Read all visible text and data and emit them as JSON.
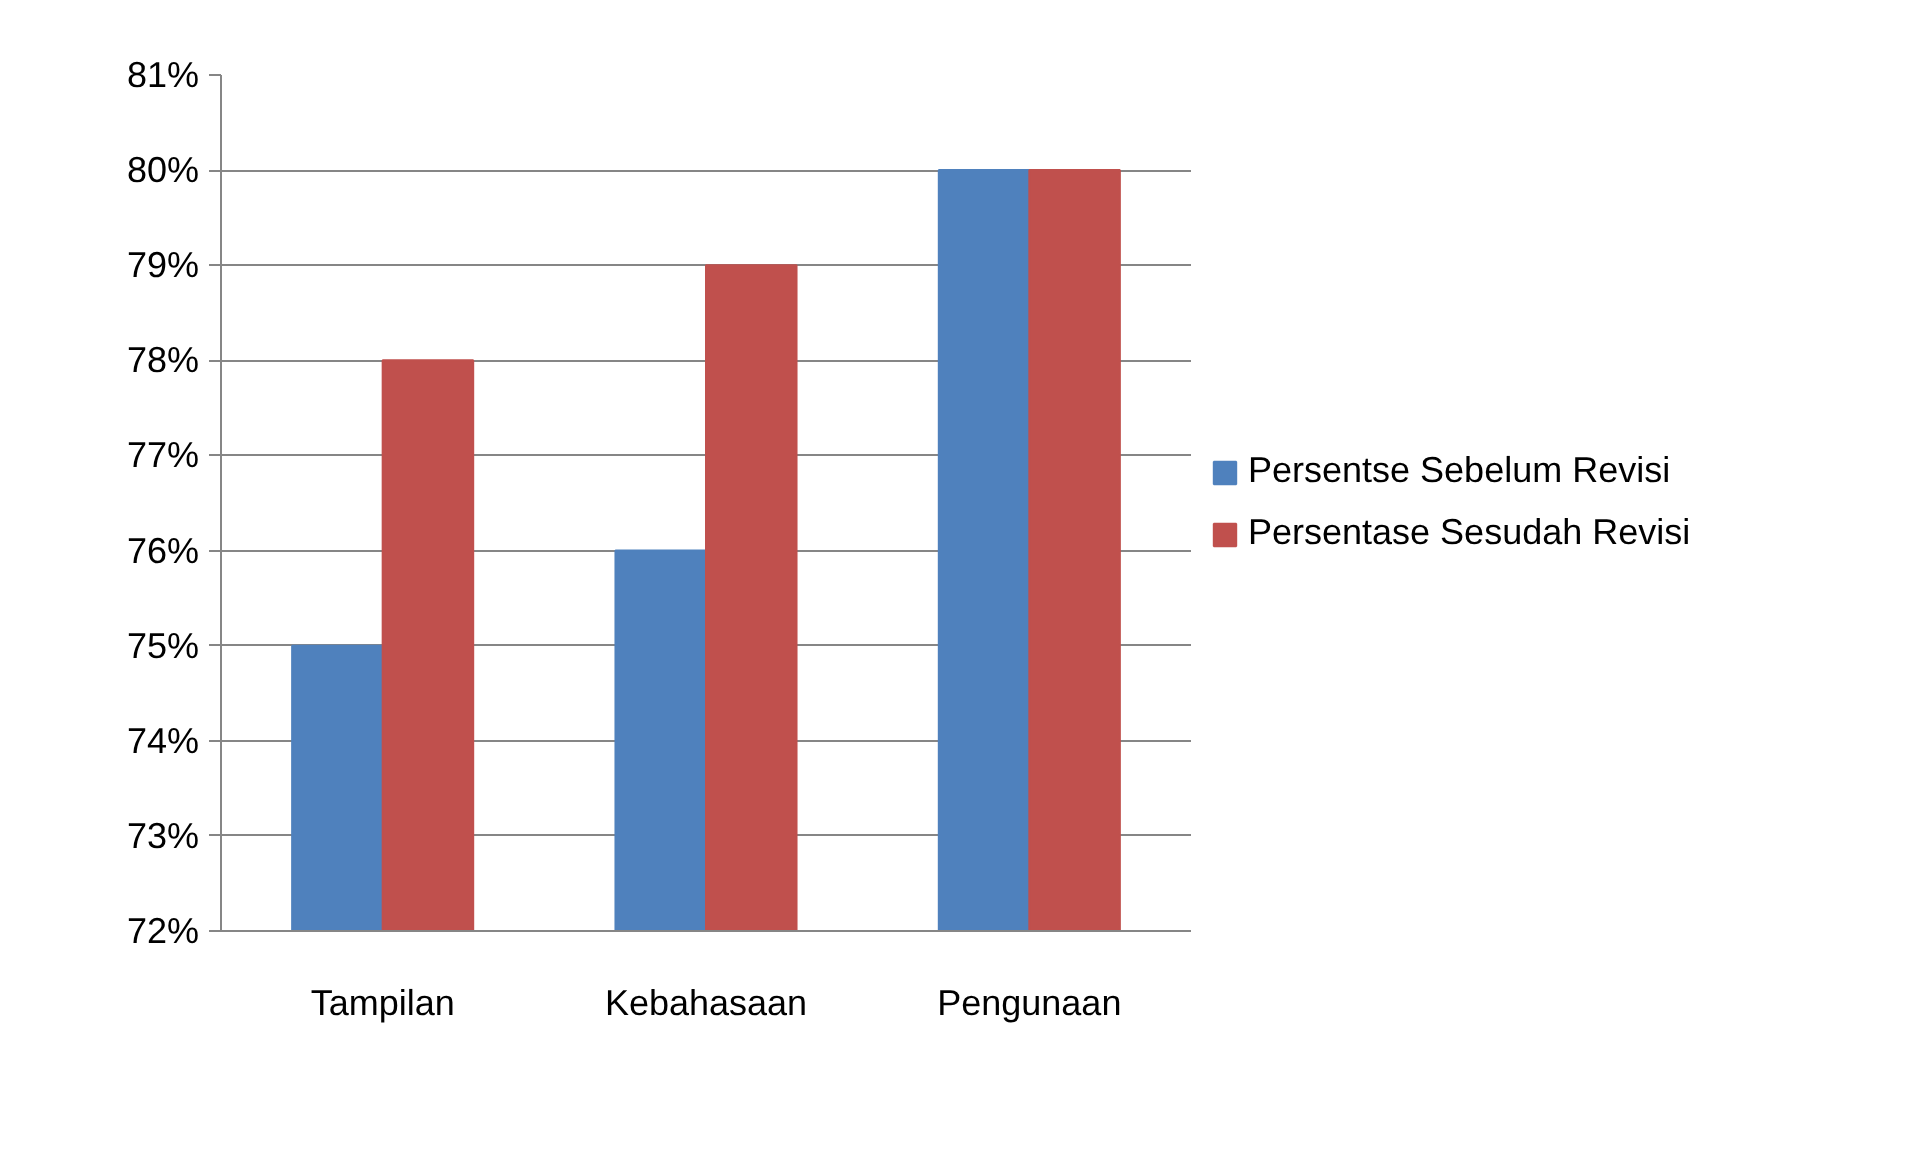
{
  "chart_data": {
    "type": "bar",
    "categories": [
      "Tampilan",
      "Kebahasaan",
      "Pengunaan"
    ],
    "series": [
      {
        "name": "Persentse Sebelum Revisi",
        "color": "#4f81bd",
        "values": [
          75,
          76,
          80
        ]
      },
      {
        "name": "Persentase Sesudah Revisi",
        "color": "#c0504d",
        "values": [
          78,
          79,
          80
        ]
      }
    ],
    "ylim": [
      72,
      81
    ],
    "yticks": [
      {
        "value": 72,
        "label": "72%"
      },
      {
        "value": 73,
        "label": "73%"
      },
      {
        "value": 74,
        "label": "74%"
      },
      {
        "value": 75,
        "label": "75%"
      },
      {
        "value": 76,
        "label": "76%"
      },
      {
        "value": 77,
        "label": "77%"
      },
      {
        "value": 78,
        "label": "78%"
      },
      {
        "value": 79,
        "label": "79%"
      },
      {
        "value": 80,
        "label": "80%"
      },
      {
        "value": 81,
        "label": "81%"
      }
    ],
    "grid": "y",
    "legend": "right"
  }
}
